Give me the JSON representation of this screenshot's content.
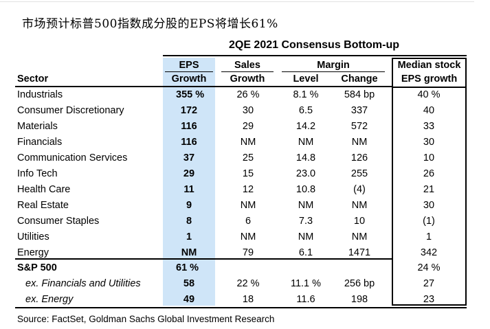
{
  "title": "市场预计标普500指数成分股的EPS将增长61%",
  "table": {
    "supertitle": "2QE 2021 Consensus Bottom-up",
    "headers": {
      "sector": "Sector",
      "eps_top": "EPS",
      "eps_bottom": "Growth",
      "sales_top": "Sales",
      "sales_bottom": "Growth",
      "margin": "Margin",
      "level": "Level",
      "change": "Change",
      "median_top": "Median stock",
      "median_bottom": "EPS growth"
    },
    "rows": [
      {
        "sector": "Industrials",
        "eps": "355 %",
        "sales": "26 %",
        "level": "8.1 %",
        "change": "584 bp",
        "median": "40 %"
      },
      {
        "sector": "Consumer Discretionary",
        "eps": "172",
        "sales": "30",
        "level": "6.5",
        "change": "337",
        "median": "40"
      },
      {
        "sector": "Materials",
        "eps": "116",
        "sales": "29",
        "level": "14.2",
        "change": "572",
        "median": "33"
      },
      {
        "sector": "Financials",
        "eps": "116",
        "sales": "NM",
        "level": "NM",
        "change": "NM",
        "median": "30"
      },
      {
        "sector": "Communication Services",
        "eps": "37",
        "sales": "25",
        "level": "14.8",
        "change": "126",
        "median": "10"
      },
      {
        "sector": "Info Tech",
        "eps": "29",
        "sales": "15",
        "level": "23.0",
        "change": "255",
        "median": "26"
      },
      {
        "sector": "Health Care",
        "eps": "11",
        "sales": "12",
        "level": "10.8",
        "change": "(4)",
        "median": "21"
      },
      {
        "sector": "Real Estate",
        "eps": "9",
        "sales": "NM",
        "level": "NM",
        "change": "NM",
        "median": "30"
      },
      {
        "sector": "Consumer Staples",
        "eps": "8",
        "sales": "6",
        "level": "7.3",
        "change": "10",
        "median": "(1)"
      },
      {
        "sector": "Utilities",
        "eps": "1",
        "sales": "NM",
        "level": "NM",
        "change": "NM",
        "median": "1"
      },
      {
        "sector": "Energy",
        "eps": "NM",
        "sales": "79",
        "level": "6.1",
        "change": "1471",
        "median": "342"
      }
    ],
    "summary": [
      {
        "sector": "S&P 500",
        "eps": "61 %",
        "sales": "",
        "level": "",
        "change": "",
        "median": "24 %"
      },
      {
        "sector": "ex. Financials and Utilities",
        "eps": "58",
        "sales": "22 %",
        "level": "11.1 %",
        "change": "256 bp",
        "median": "27"
      },
      {
        "sector": "ex. Energy",
        "eps": "49",
        "sales": "18",
        "level": "11.6",
        "change": "198",
        "median": "23"
      }
    ]
  },
  "source": "Source: FactSet, Goldman Sachs Global Investment Research"
}
